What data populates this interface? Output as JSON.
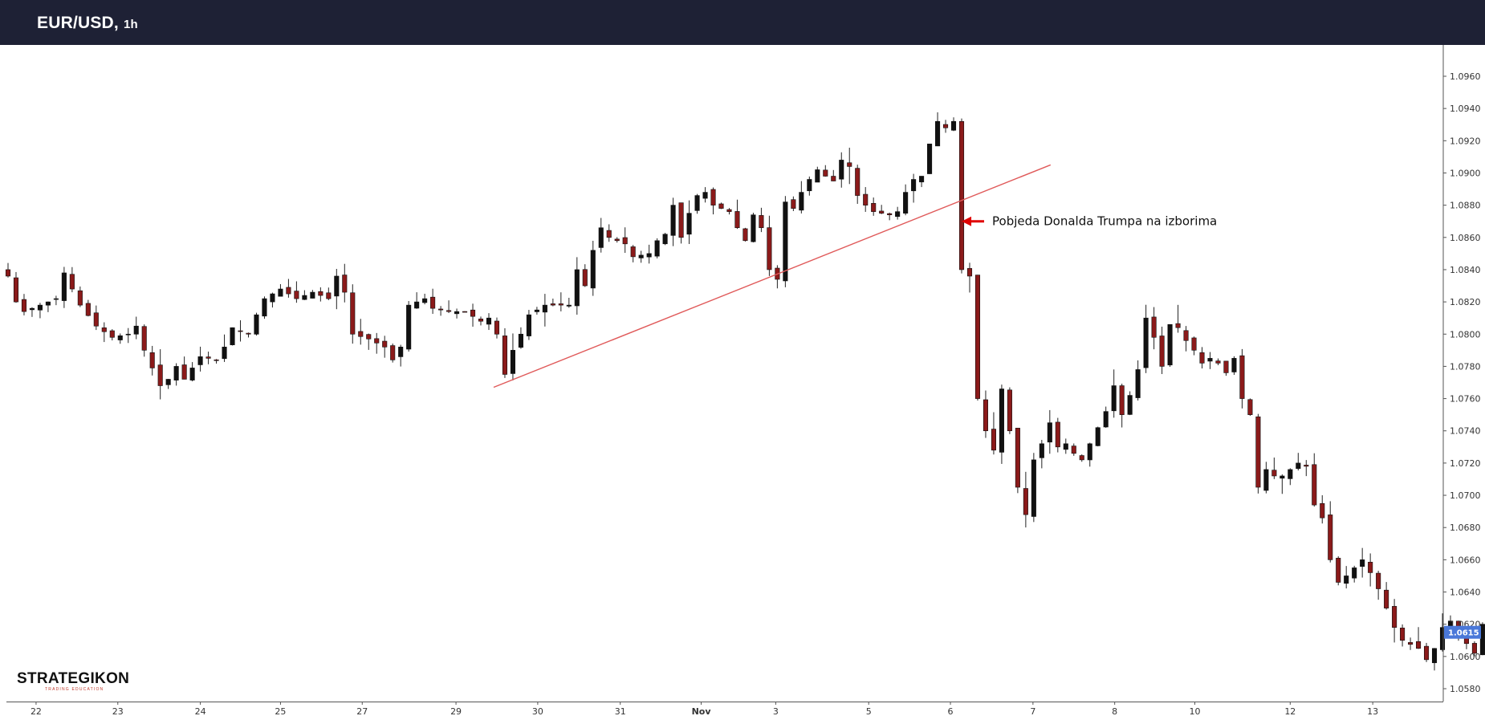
{
  "header": {
    "symbol": "EUR/USD,",
    "interval": "1h"
  },
  "logo": {
    "name": "STRATEGIKON",
    "tagline": "TRADING EDUCATION"
  },
  "colors": {
    "header_bg": "#1e2135",
    "candle_up": "#111111",
    "candle_down": "#8b1a1a",
    "trendline": "#e05a5a",
    "arrow": "#e00000",
    "price_tag": "#4a78d9",
    "axis": "#555555"
  },
  "chart_data": {
    "type": "candlestick",
    "title": "EUR/USD, 1h",
    "ylim": [
      1.057,
      1.097
    ],
    "y_ticks": [
      1.058,
      1.06,
      1.062,
      1.064,
      1.066,
      1.068,
      1.07,
      1.072,
      1.074,
      1.076,
      1.078,
      1.08,
      1.082,
      1.084,
      1.086,
      1.088,
      1.09,
      1.092,
      1.094,
      1.096
    ],
    "y_tick_labels": [
      "1.0580",
      "1.0600",
      "1.0620",
      "1.0640",
      "1.0660",
      "1.0680",
      "1.0700",
      "1.0720",
      "1.0740",
      "1.0760",
      "1.0780",
      "1.0800",
      "1.0820",
      "1.0840",
      "1.0860",
      "1.0880",
      "1.0900",
      "1.0920",
      "1.0940",
      "1.0960"
    ],
    "x_ticks": [
      {
        "label": "22",
        "index": 3.5,
        "bold": false
      },
      {
        "label": "23",
        "index": 13.7,
        "bold": false
      },
      {
        "label": "24",
        "index": 24.0,
        "bold": false
      },
      {
        "label": "25",
        "index": 34.0,
        "bold": false
      },
      {
        "label": "27",
        "index": 44.2,
        "bold": false
      },
      {
        "label": "29",
        "index": 55.9,
        "bold": false
      },
      {
        "label": "30",
        "index": 66.1,
        "bold": false
      },
      {
        "label": "31",
        "index": 76.4,
        "bold": false
      },
      {
        "label": "Nov",
        "index": 86.5,
        "bold": true
      },
      {
        "label": "3",
        "index": 95.8,
        "bold": false
      },
      {
        "label": "5",
        "index": 107.4,
        "bold": false
      },
      {
        "label": "6",
        "index": 117.6,
        "bold": false
      },
      {
        "label": "7",
        "index": 127.9,
        "bold": false
      },
      {
        "label": "8",
        "index": 138.1,
        "bold": false
      },
      {
        "label": "10",
        "index": 148.1,
        "bold": false
      },
      {
        "label": "12",
        "index": 160.0,
        "bold": false
      },
      {
        "label": "13",
        "index": 170.3,
        "bold": false
      }
    ],
    "x_count": 175,
    "anchors": [
      [
        0,
        1.0836
      ],
      [
        1,
        1.082
      ],
      [
        2,
        1.0814
      ],
      [
        4,
        1.0818
      ],
      [
        6,
        1.0822
      ],
      [
        7,
        1.0838
      ],
      [
        9,
        1.0818
      ],
      [
        11,
        1.0805
      ],
      [
        13,
        1.0798
      ],
      [
        15,
        1.08
      ],
      [
        16,
        1.0805
      ],
      [
        17,
        1.079
      ],
      [
        19,
        1.0768
      ],
      [
        20,
        1.0772
      ],
      [
        21,
        1.078
      ],
      [
        22,
        1.0772
      ],
      [
        24,
        1.0786
      ],
      [
        26,
        1.0784
      ],
      [
        27,
        1.0792
      ],
      [
        28,
        1.0804
      ],
      [
        30,
        1.08
      ],
      [
        31,
        1.0812
      ],
      [
        32,
        1.0822
      ],
      [
        34,
        1.0828
      ],
      [
        36,
        1.0822
      ],
      [
        38,
        1.0826
      ],
      [
        40,
        1.0822
      ],
      [
        41,
        1.0836
      ],
      [
        42,
        1.0826
      ],
      [
        43,
        1.08
      ],
      [
        45,
        1.0797
      ],
      [
        47,
        1.0792
      ],
      [
        48,
        1.0784
      ],
      [
        49,
        1.0792
      ],
      [
        50,
        1.0818
      ],
      [
        52,
        1.0822
      ],
      [
        53,
        1.0816
      ],
      [
        55,
        1.0814
      ],
      [
        57,
        1.0814
      ],
      [
        59,
        1.0808
      ],
      [
        60,
        1.081
      ],
      [
        61,
        1.08
      ],
      [
        62,
        1.0775
      ],
      [
        63,
        1.079
      ],
      [
        64,
        1.08
      ],
      [
        65,
        1.0812
      ],
      [
        67,
        1.0818
      ],
      [
        69,
        1.0818
      ],
      [
        70,
        1.0818
      ],
      [
        71,
        1.084
      ],
      [
        72,
        1.083
      ],
      [
        73,
        1.0852
      ],
      [
        74,
        1.0866
      ],
      [
        75,
        1.086
      ],
      [
        77,
        1.0856
      ],
      [
        78,
        1.0848
      ],
      [
        80,
        1.085
      ],
      [
        81,
        1.0858
      ],
      [
        82,
        1.0862
      ],
      [
        83,
        1.088
      ],
      [
        84,
        1.086
      ],
      [
        85,
        1.0875
      ],
      [
        86,
        1.0886
      ],
      [
        87,
        1.0888
      ],
      [
        88,
        1.088
      ],
      [
        90,
        1.0876
      ],
      [
        91,
        1.0866
      ],
      [
        92,
        1.0858
      ],
      [
        93,
        1.0874
      ],
      [
        94,
        1.0866
      ],
      [
        95,
        1.084
      ],
      [
        96,
        1.0834
      ],
      [
        97,
        1.0882
      ],
      [
        98,
        1.0878
      ],
      [
        99,
        1.0888
      ],
      [
        100,
        1.0896
      ],
      [
        101,
        1.0902
      ],
      [
        102,
        1.0898
      ],
      [
        103,
        1.0895
      ],
      [
        104,
        1.0908
      ],
      [
        105,
        1.0904
      ],
      [
        106,
        1.0886
      ],
      [
        107,
        1.088
      ],
      [
        108,
        1.0876
      ],
      [
        110,
        1.0874
      ],
      [
        111,
        1.0876
      ],
      [
        112,
        1.0888
      ],
      [
        113,
        1.0896
      ],
      [
        114,
        1.0898
      ],
      [
        115,
        1.0918
      ],
      [
        116,
        1.0932
      ],
      [
        117,
        1.0928
      ],
      [
        118,
        1.0932
      ],
      [
        119,
        1.084
      ],
      [
        120,
        1.0836
      ],
      [
        121,
        1.076
      ],
      [
        122,
        1.074
      ],
      [
        123,
        1.0728
      ],
      [
        124,
        1.0766
      ],
      [
        125,
        1.074
      ],
      [
        126,
        1.0705
      ],
      [
        127,
        1.0688
      ],
      [
        128,
        1.0722
      ],
      [
        129,
        1.0732
      ],
      [
        130,
        1.0745
      ],
      [
        131,
        1.073
      ],
      [
        132,
        1.0732
      ],
      [
        133,
        1.0726
      ],
      [
        134,
        1.0722
      ],
      [
        135,
        1.0732
      ],
      [
        136,
        1.0742
      ],
      [
        137,
        1.0752
      ],
      [
        138,
        1.0768
      ],
      [
        139,
        1.075
      ],
      [
        140,
        1.0762
      ],
      [
        141,
        1.0778
      ],
      [
        142,
        1.081
      ],
      [
        143,
        1.0798
      ],
      [
        144,
        1.078
      ],
      [
        145,
        1.0806
      ],
      [
        146,
        1.0804
      ],
      [
        147,
        1.0796
      ],
      [
        148,
        1.079
      ],
      [
        149,
        1.0782
      ],
      [
        150,
        1.0785
      ],
      [
        151,
        1.0782
      ],
      [
        152,
        1.0776
      ],
      [
        153,
        1.0785
      ],
      [
        154,
        1.076
      ],
      [
        155,
        1.075
      ],
      [
        156,
        1.0705
      ],
      [
        157,
        1.0716
      ],
      [
        158,
        1.0712
      ],
      [
        159,
        1.0712
      ],
      [
        160,
        1.0716
      ],
      [
        161,
        1.072
      ],
      [
        162,
        1.0718
      ],
      [
        163,
        1.0694
      ],
      [
        164,
        1.0686
      ],
      [
        165,
        1.066
      ],
      [
        166,
        1.0646
      ],
      [
        167,
        1.065
      ],
      [
        168,
        1.0655
      ],
      [
        169,
        1.066
      ],
      [
        170,
        1.0652
      ],
      [
        171,
        1.0642
      ],
      [
        172,
        1.063
      ],
      [
        173,
        1.0618
      ],
      [
        174,
        1.061
      ],
      [
        176,
        1.0605
      ],
      [
        177,
        1.0598
      ],
      [
        178,
        1.0605
      ],
      [
        179,
        1.0618
      ],
      [
        180,
        1.0622
      ],
      [
        181,
        1.0614
      ],
      [
        182,
        1.0608
      ],
      [
        183,
        1.0602
      ],
      [
        184,
        1.062
      ]
    ],
    "gaps": [
      [
        95.5,
        96.5
      ]
    ],
    "last_price": 1.0615,
    "last_price_label": "1.0615",
    "trendline": {
      "x1": 60.6,
      "y1": 1.0767,
      "x2": 130.1,
      "y2": 1.0905
    },
    "annotation": {
      "text": "Pobjeda Donalda Trumpa na izborima",
      "arrow_at_index": 117.6,
      "arrow_at_price": 1.087
    }
  }
}
